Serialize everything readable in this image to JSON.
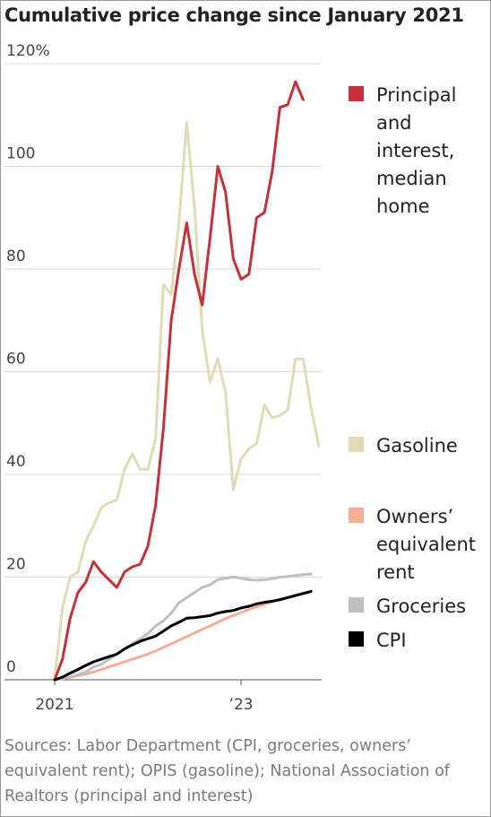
{
  "chart_data": {
    "type": "line",
    "title": "Cumulative price change since January 2021",
    "categories": [
      "2021",
      null,
      null,
      null,
      null,
      null,
      null,
      null,
      null,
      null,
      null,
      null,
      null,
      null,
      null,
      null,
      null,
      null,
      null,
      null,
      null,
      null,
      null,
      null,
      "’23",
      null,
      null,
      null,
      null,
      null,
      null,
      null,
      null,
      null,
      null
    ],
    "ylim": [
      0,
      120
    ],
    "yticks": [
      0,
      20,
      40,
      60,
      80,
      100,
      {
        "value": 120,
        "label": "120%"
      }
    ],
    "grid": true,
    "series": [
      {
        "name": "Principal and interest, median home",
        "color": "#c5303b",
        "values": [
          0,
          4,
          12,
          17,
          19,
          23,
          21,
          19.5,
          18,
          21,
          22,
          22.5,
          26,
          34,
          49,
          70,
          80,
          89,
          79,
          73,
          86,
          100,
          95,
          82,
          78,
          79,
          90,
          91,
          99,
          111.5,
          112,
          116.5,
          113,
          null,
          null
        ]
      },
      {
        "name": "Gasoline",
        "color": "#e0dbb6",
        "values": [
          0,
          14,
          20,
          21,
          27,
          30,
          33.5,
          34.5,
          35,
          41,
          44,
          41,
          41,
          47,
          77,
          75,
          89,
          108.5,
          92,
          68,
          58,
          62.5,
          56,
          37,
          43,
          45,
          46,
          53.5,
          51,
          51.5,
          52.5,
          62.5,
          62.5,
          53,
          45.5
        ]
      },
      {
        "name": "Owners’ equivalent rent",
        "color": "#f4ad98",
        "values": [
          0,
          0.2,
          0.5,
          0.8,
          1.1,
          1.5,
          2,
          2.5,
          3,
          3.5,
          4,
          4.5,
          5,
          5.6,
          6.3,
          7,
          7.7,
          8.4,
          9.1,
          9.8,
          10.5,
          11.2,
          11.9,
          12.5,
          13.1,
          13.7,
          14.2,
          14.7,
          15.2,
          15.7,
          16.1,
          16.5,
          16.9,
          17.2,
          null
        ]
      },
      {
        "name": "Groceries",
        "color": "#bfbfbf",
        "values": [
          0,
          0.3,
          0.5,
          1,
          1.5,
          2.5,
          3,
          4,
          5,
          6,
          7,
          8,
          9,
          10.5,
          11.5,
          13,
          15,
          16,
          17,
          18,
          18.5,
          19.5,
          19.8,
          20,
          19.8,
          19.5,
          19.4,
          19.5,
          19.7,
          20,
          20.1,
          20.3,
          20.5,
          20.6,
          null
        ]
      },
      {
        "name": "CPI",
        "color": "#000000",
        "values": [
          0,
          0.5,
          1.3,
          2,
          2.8,
          3.5,
          4,
          4.5,
          5,
          6,
          6.8,
          7.5,
          8,
          8.5,
          9.5,
          10.5,
          11.2,
          12,
          12.1,
          12.3,
          12.5,
          13,
          13.3,
          13.5,
          14,
          14.3,
          14.8,
          15.1,
          15.3,
          15.6,
          16,
          16.4,
          16.8,
          17.2,
          null
        ]
      }
    ],
    "source": "Sources: Labor Department (CPI, groceries, owners’ equivalent rent); OPIS (gasoline); National Association of Realtors (principal and interest)"
  }
}
